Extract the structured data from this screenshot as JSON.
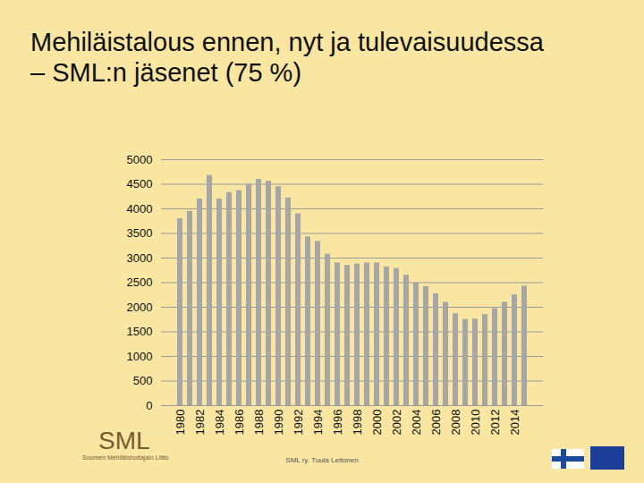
{
  "chart_data": {
    "type": "bar",
    "title": "Mehiläistalous ennen, nyt ja tulevaisuudessa",
    "subtitle": "– SML:n jäsenet (75 %)",
    "categories": [
      "1980",
      null,
      "1982",
      null,
      "1984",
      null,
      "1986",
      null,
      "1988",
      null,
      "1990",
      null,
      "1992",
      null,
      "1994",
      null,
      "1996",
      null,
      "1998",
      null,
      "2000",
      null,
      "2002",
      null,
      "2004",
      null,
      "2006",
      null,
      "2008",
      null,
      "2010",
      null,
      "2012",
      null,
      "2014",
      null
    ],
    "values": [
      3800,
      3950,
      4200,
      4680,
      4200,
      4330,
      4370,
      4500,
      4600,
      4560,
      4450,
      4220,
      3900,
      3430,
      3340,
      3080,
      2900,
      2850,
      2880,
      2900,
      2900,
      2820,
      2790,
      2650,
      2500,
      2420,
      2270,
      2100,
      1870,
      1750,
      1760,
      1850,
      1970,
      2100,
      2250,
      2430
    ],
    "color": "#a6a6a6",
    "ylim": [
      0,
      5000
    ],
    "yticks": [
      0,
      500,
      1000,
      1500,
      2000,
      2500,
      3000,
      3500,
      4000,
      4500,
      5000
    ],
    "grid": true
  },
  "footer": {
    "credit": "SML ry. Tuula Leitonen",
    "logo": "SML",
    "logo_subtitle": "Suomen Mehiläishoitajain Liitto"
  }
}
